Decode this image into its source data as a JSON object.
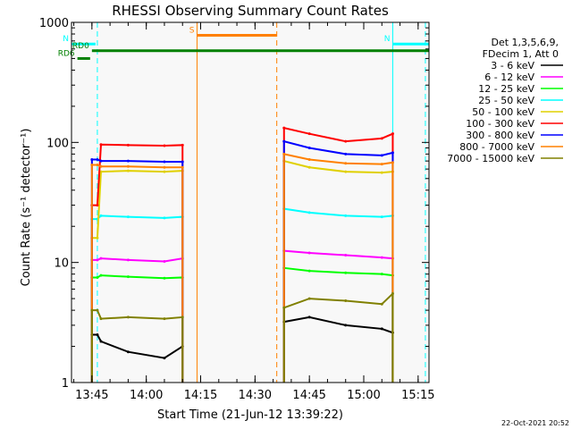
{
  "chart_data": {
    "type": "line",
    "title": "RHESSI Observing Summary Count Rates",
    "xlabel": "Start Time (21-Jun-12 13:39:22)",
    "ylabel": "Count Rate (s⁻¹ detector⁻¹)",
    "yscale": "log",
    "ylim": [
      1,
      1000
    ],
    "xlim_minutes": [
      "13:39:22",
      "15:18"
    ],
    "x_ticks": [
      "13:45",
      "14:00",
      "14:15",
      "14:30",
      "14:45",
      "15:00",
      "15:15"
    ],
    "y_ticks": [
      "1",
      "10",
      "100",
      "1000"
    ],
    "timestamp": "22-Oct-2021 20:52",
    "legend_header": [
      "Det 1,3,5,6,9,",
      "FDecim 1, Att 0"
    ],
    "series": [
      {
        "name": "3 - 6 keV",
        "color": "#000000",
        "segments": [
          {
            "x": [
              "13:45:00",
              "13:46:30",
              "13:47:30",
              "13:55:00",
              "14:05:00",
              "14:10:00"
            ],
            "y": [
              2.5,
              2.5,
              2.2,
              1.8,
              1.6,
              2.0
            ]
          },
          {
            "x": [
              "14:38:00",
              "14:45:00",
              "14:55:00",
              "15:05:00",
              "15:08:00"
            ],
            "y": [
              3.2,
              3.5,
              3.0,
              2.8,
              2.6
            ]
          }
        ]
      },
      {
        "name": "6 - 12 keV",
        "color": "#ff00ff",
        "segments": [
          {
            "x": [
              "13:45:00",
              "13:46:30",
              "13:47:30",
              "13:55:00",
              "14:05:00",
              "14:10:00"
            ],
            "y": [
              10.5,
              10.5,
              10.8,
              10.5,
              10.2,
              10.8
            ]
          },
          {
            "x": [
              "14:38:00",
              "14:45:00",
              "14:55:00",
              "15:05:00",
              "15:08:00"
            ],
            "y": [
              12.5,
              12.0,
              11.5,
              11.0,
              10.8
            ]
          }
        ]
      },
      {
        "name": "12 - 25 keV",
        "color": "#00ff00",
        "segments": [
          {
            "x": [
              "13:45:00",
              "13:46:30",
              "13:47:30",
              "13:55:00",
              "14:05:00",
              "14:10:00"
            ],
            "y": [
              7.5,
              7.5,
              7.8,
              7.6,
              7.4,
              7.5
            ]
          },
          {
            "x": [
              "14:38:00",
              "14:45:00",
              "14:55:00",
              "15:05:00",
              "15:08:00"
            ],
            "y": [
              9.0,
              8.5,
              8.2,
              8.0,
              7.8
            ]
          }
        ]
      },
      {
        "name": "25 - 50 keV",
        "color": "#00ffff",
        "segments": [
          {
            "x": [
              "13:45:00",
              "13:46:30",
              "13:47:30",
              "13:55:00",
              "14:05:00",
              "14:10:00"
            ],
            "y": [
              23,
              23,
              24.5,
              24,
              23.5,
              24
            ]
          },
          {
            "x": [
              "14:38:00",
              "14:45:00",
              "14:55:00",
              "15:05:00",
              "15:08:00"
            ],
            "y": [
              28,
              26,
              24.5,
              24,
              24.5
            ]
          }
        ]
      },
      {
        "name": "50 - 100 keV",
        "color": "#e0d000",
        "segments": [
          {
            "x": [
              "13:45:00",
              "13:46:30",
              "13:47:30",
              "13:55:00",
              "14:05:00",
              "14:10:00"
            ],
            "y": [
              16,
              16,
              57,
              58,
              57,
              58
            ]
          },
          {
            "x": [
              "14:38:00",
              "14:45:00",
              "14:55:00",
              "15:05:00",
              "15:08:00"
            ],
            "y": [
              70,
              62,
              57,
              56,
              57
            ]
          }
        ]
      },
      {
        "name": "100 - 300 keV",
        "color": "#ff0000",
        "segments": [
          {
            "x": [
              "13:45:00",
              "13:46:30",
              "13:47:30",
              "13:55:00",
              "14:05:00",
              "14:10:00"
            ],
            "y": [
              30,
              30,
              96,
              95,
              94,
              95
            ]
          },
          {
            "x": [
              "14:38:00",
              "14:45:00",
              "14:55:00",
              "15:05:00",
              "15:08:00"
            ],
            "y": [
              132,
              118,
              102,
              108,
              118
            ]
          }
        ]
      },
      {
        "name": "300 - 800 keV",
        "color": "#0000ff",
        "segments": [
          {
            "x": [
              "13:45:00",
              "13:46:30",
              "13:47:30",
              "13:55:00",
              "14:05:00",
              "14:10:00"
            ],
            "y": [
              72,
              72,
              70,
              70,
              69,
              69
            ]
          },
          {
            "x": [
              "14:38:00",
              "14:45:00",
              "14:55:00",
              "15:05:00",
              "15:08:00"
            ],
            "y": [
              102,
              90,
              80,
              78,
              82
            ]
          }
        ]
      },
      {
        "name": "800 - 7000 keV",
        "color": "#ff8000",
        "segments": [
          {
            "x": [
              "13:45:00",
              "13:46:30",
              "13:47:30",
              "13:55:00",
              "14:05:00",
              "14:10:00"
            ],
            "y": [
              65,
              65,
              63,
              63,
              62,
              62
            ]
          },
          {
            "x": [
              "14:38:00",
              "14:45:00",
              "14:55:00",
              "15:05:00",
              "15:08:00"
            ],
            "y": [
              80,
              72,
              67,
              66,
              68
            ]
          }
        ]
      },
      {
        "name": "7000 - 15000 keV",
        "color": "#808000",
        "segments": [
          {
            "x": [
              "13:45:00",
              "13:46:30",
              "13:47:30",
              "13:55:00",
              "14:05:00",
              "14:10:00"
            ],
            "y": [
              4.0,
              4.0,
              3.4,
              3.5,
              3.4,
              3.5
            ]
          },
          {
            "x": [
              "14:38:00",
              "14:45:00",
              "14:55:00",
              "15:05:00",
              "15:08:00"
            ],
            "y": [
              4.2,
              5.0,
              4.8,
              4.5,
              5.5
            ]
          }
        ]
      }
    ],
    "flags": [
      {
        "label": "S",
        "color": "#ff8000",
        "level": 780,
        "start": "14:14:00",
        "end": "14:36:00"
      },
      {
        "label": "N",
        "color": "#00ffff",
        "level": 660,
        "start": "13:39:22",
        "end": "13:46:00"
      },
      {
        "label": "N",
        "color": "#00ffff",
        "level": 660,
        "start": "15:08:00",
        "end": "15:18:00"
      },
      {
        "label": "RD0",
        "color": "#008000",
        "level": 580,
        "start": "13:45:00",
        "end": "15:18:00"
      },
      {
        "label": "RD6",
        "color": "#008000",
        "level": 500,
        "start": "13:41:00",
        "end": "13:44:30"
      }
    ],
    "vertical_markers": [
      {
        "time": "13:39:22",
        "color": "#00ffff",
        "style": "solid"
      },
      {
        "time": "13:46:30",
        "color": "#00ffff",
        "style": "dashed"
      },
      {
        "time": "14:14:00",
        "color": "#ff8000",
        "style": "solid"
      },
      {
        "time": "14:36:00",
        "color": "#ff8000",
        "style": "dashed"
      },
      {
        "time": "15:08:00",
        "color": "#00ffff",
        "style": "solid"
      },
      {
        "time": "15:17:00",
        "color": "#00ffff",
        "style": "dashed"
      }
    ]
  }
}
